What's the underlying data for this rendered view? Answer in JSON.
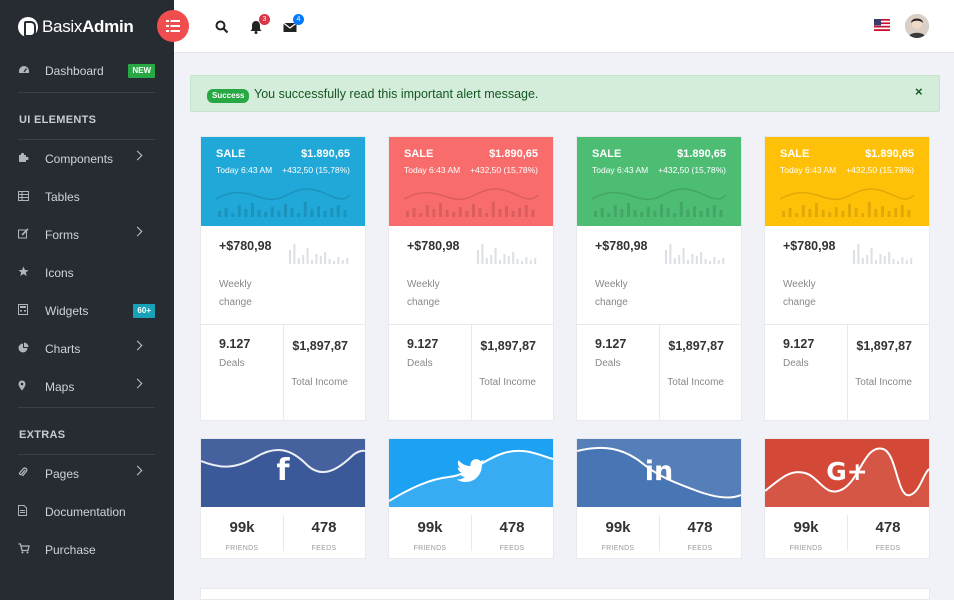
{
  "app": {
    "logo_light": "Basix",
    "logo_bold": "Admin"
  },
  "sidebar": {
    "items": [
      {
        "label": "Dashboard",
        "icon": "dashboard-icon",
        "badge": "NEW",
        "badge_color": "#28a745"
      },
      {
        "label": "Components",
        "icon": "puzzle-icon"
      },
      {
        "label": "Tables",
        "icon": "table-icon"
      },
      {
        "label": "Forms",
        "icon": "edit-icon"
      },
      {
        "label": "Icons",
        "icon": "star-icon"
      },
      {
        "label": "Widgets",
        "icon": "calculator-icon",
        "badge": "60+",
        "badge_color": "#17a2b8"
      },
      {
        "label": "Charts",
        "icon": "pie-chart-icon"
      },
      {
        "label": "Maps",
        "icon": "map-marker-icon"
      },
      {
        "label": "Pages",
        "icon": "paperclip-icon"
      },
      {
        "label": "Documentation",
        "icon": "file-icon"
      },
      {
        "label": "Purchase",
        "icon": "cart-icon"
      }
    ],
    "headings": {
      "ui_elements": "UI ELEMENTS",
      "extras": "EXTRAS"
    }
  },
  "topbar": {
    "notifications_count": "3",
    "messages_count": "4",
    "colors": {
      "menu_button": "#f04e4e",
      "notif_badge": "#dc3545",
      "msg_badge": "#007bff"
    }
  },
  "alert": {
    "badge": "Success",
    "message": "You successfully read this important alert message.",
    "close": "×"
  },
  "cards": [
    {
      "color": "#20a8d8",
      "sale": "SALE",
      "amount": "$1.890,65",
      "today": "Today 6:43 AM",
      "change": "+432,50 (15,78%)",
      "weekly_value": "+$780,98",
      "weekly_label": "Weekly change",
      "deals_value": "9.127",
      "deals_label": "Deals",
      "income_value": "$1,897,87",
      "income_label": "Total Income"
    },
    {
      "color": "#f86c6b",
      "sale": "SALE",
      "amount": "$1.890,65",
      "today": "Today 6:43 AM",
      "change": "+432,50 (15,78%)",
      "weekly_value": "+$780,98",
      "weekly_label": "Weekly change",
      "deals_value": "9.127",
      "deals_label": "Deals",
      "income_value": "$1,897,87",
      "income_label": "Total Income"
    },
    {
      "color": "#4dbd74",
      "sale": "SALE",
      "amount": "$1.890,65",
      "today": "Today 6:43 AM",
      "change": "+432,50 (15,78%)",
      "weekly_value": "+$780,98",
      "weekly_label": "Weekly change",
      "deals_value": "9.127",
      "deals_label": "Deals",
      "income_value": "$1,897,87",
      "income_label": "Total Income"
    },
    {
      "color": "#ffc107",
      "sale": "SALE",
      "amount": "$1.890,65",
      "today": "Today 6:43 AM",
      "change": "+432,50 (15,78%)",
      "weekly_value": "+$780,98",
      "weekly_label": "Weekly change",
      "deals_value": "9.127",
      "deals_label": "Deals",
      "income_value": "$1,897,87",
      "income_label": "Total Income"
    }
  ],
  "social": [
    {
      "network": "facebook",
      "icon": "facebook-icon",
      "glyph": "f",
      "color": "#3b5998",
      "friends": "99k",
      "friends_label": "FRIENDS",
      "feeds": "478",
      "feeds_label": "FEEDS"
    },
    {
      "network": "twitter",
      "icon": "twitter-icon",
      "glyph": "",
      "color": "#1da1f2",
      "friends": "99k",
      "friends_label": "FRIENDS",
      "feeds": "478",
      "feeds_label": "FEEDS"
    },
    {
      "network": "linkedin",
      "icon": "linkedin-icon",
      "glyph": "in",
      "color": "#4875b4",
      "friends": "99k",
      "friends_label": "FRIENDS",
      "feeds": "478",
      "feeds_label": "FEEDS"
    },
    {
      "network": "google-plus",
      "icon": "google-plus-icon",
      "glyph": "G+",
      "color": "#d34836",
      "friends": "99k",
      "friends_label": "FRIENDS",
      "feeds": "478",
      "feeds_label": "FEEDS"
    }
  ]
}
